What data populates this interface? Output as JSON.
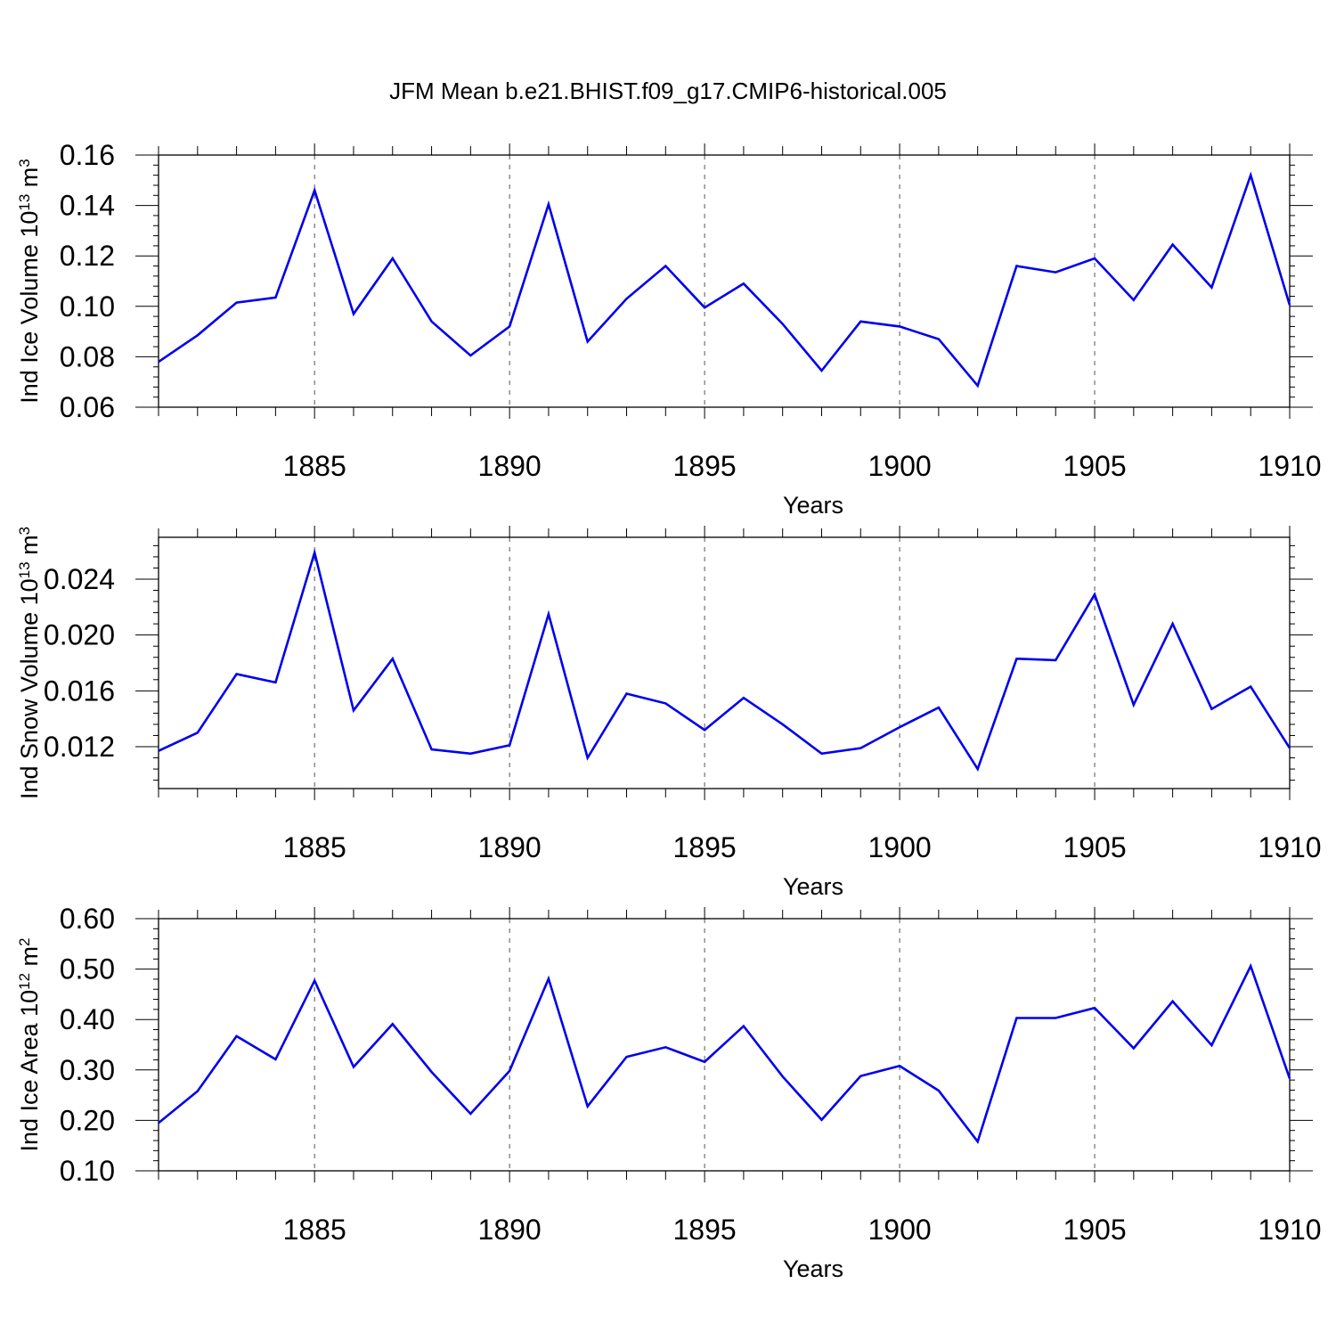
{
  "title": "JFM Mean b.e21.BHIST.f09_g17.CMIP6-historical.005",
  "colors": {
    "line": "#0000ee",
    "axis": "#000000",
    "grid": "#555555"
  },
  "chart_data": [
    {
      "type": "line",
      "xlabel": "Years",
      "ylabel": {
        "main": "Ind Ice Volume 10",
        "sup": "13",
        "unit": " m",
        "unit_sup": "3"
      },
      "xlim": [
        1881,
        1910
      ],
      "ylim": [
        0.06,
        0.16
      ],
      "x_ticks": [
        1885,
        1890,
        1895,
        1900,
        1905,
        1910
      ],
      "x_tick_labels": [
        "1885",
        "1890",
        "1895",
        "1900",
        "1905",
        "1910"
      ],
      "y_ticks": [
        0.06,
        0.08,
        0.1,
        0.12,
        0.14,
        0.16
      ],
      "y_tick_labels": [
        "0.06",
        "0.08",
        "0.10",
        "0.12",
        "0.14",
        "0.16"
      ],
      "grid": "vertical dashed at major x ticks",
      "x": [
        1881,
        1882,
        1883,
        1884,
        1885,
        1886,
        1887,
        1888,
        1889,
        1890,
        1891,
        1892,
        1893,
        1894,
        1895,
        1896,
        1897,
        1898,
        1899,
        1900,
        1901,
        1902,
        1903,
        1904,
        1905,
        1906,
        1907,
        1908,
        1909,
        1910
      ],
      "values": [
        0.078,
        0.0885,
        0.1015,
        0.1035,
        0.146,
        0.097,
        0.119,
        0.094,
        0.0805,
        0.092,
        0.1405,
        0.086,
        0.103,
        0.116,
        0.0995,
        0.109,
        0.093,
        0.0745,
        0.094,
        0.092,
        0.087,
        0.0685,
        0.116,
        0.1135,
        0.119,
        0.1025,
        0.1245,
        0.1075,
        0.152,
        0.1005
      ]
    },
    {
      "type": "line",
      "xlabel": "Years",
      "ylabel": {
        "main": "Ind Snow Volume 10",
        "sup": "13",
        "unit": " m",
        "unit_sup": "3"
      },
      "xlim": [
        1881,
        1910
      ],
      "ylim": [
        0.009,
        0.027
      ],
      "x_ticks": [
        1885,
        1890,
        1895,
        1900,
        1905,
        1910
      ],
      "x_tick_labels": [
        "1885",
        "1890",
        "1895",
        "1900",
        "1905",
        "1910"
      ],
      "y_ticks": [
        0.012,
        0.016,
        0.02,
        0.024
      ],
      "y_tick_labels": [
        "0.012",
        "0.016",
        "0.020",
        "0.024"
      ],
      "grid": "vertical dashed at major x ticks",
      "x": [
        1881,
        1882,
        1883,
        1884,
        1885,
        1886,
        1887,
        1888,
        1889,
        1890,
        1891,
        1892,
        1893,
        1894,
        1895,
        1896,
        1897,
        1898,
        1899,
        1900,
        1901,
        1902,
        1903,
        1904,
        1905,
        1906,
        1907,
        1908,
        1909,
        1910
      ],
      "values": [
        0.0117,
        0.013,
        0.0172,
        0.0166,
        0.0259,
        0.0146,
        0.0183,
        0.0118,
        0.0115,
        0.0121,
        0.0215,
        0.0112,
        0.0158,
        0.0151,
        0.0132,
        0.0155,
        0.0136,
        0.0115,
        0.0119,
        0.0134,
        0.0148,
        0.0104,
        0.0183,
        0.0182,
        0.0229,
        0.015,
        0.0208,
        0.0147,
        0.0163,
        0.0119
      ]
    },
    {
      "type": "line",
      "xlabel": "Years",
      "ylabel": {
        "main": "Ind Ice Area 10",
        "sup": "12",
        "unit": " m",
        "unit_sup": "2"
      },
      "xlim": [
        1881,
        1910
      ],
      "ylim": [
        0.1,
        0.6
      ],
      "x_ticks": [
        1885,
        1890,
        1895,
        1900,
        1905,
        1910
      ],
      "x_tick_labels": [
        "1885",
        "1890",
        "1895",
        "1900",
        "1905",
        "1910"
      ],
      "y_ticks": [
        0.1,
        0.2,
        0.3,
        0.4,
        0.5,
        0.6
      ],
      "y_tick_labels": [
        "0.10",
        "0.20",
        "0.30",
        "0.40",
        "0.50",
        "0.60"
      ],
      "grid": "vertical dashed at major x ticks",
      "x": [
        1881,
        1882,
        1883,
        1884,
        1885,
        1886,
        1887,
        1888,
        1889,
        1890,
        1891,
        1892,
        1893,
        1894,
        1895,
        1896,
        1897,
        1898,
        1899,
        1900,
        1901,
        1902,
        1903,
        1904,
        1905,
        1906,
        1907,
        1908,
        1909,
        1910
      ],
      "values": [
        0.195,
        0.258,
        0.367,
        0.321,
        0.477,
        0.306,
        0.391,
        0.296,
        0.213,
        0.298,
        0.481,
        0.228,
        0.326,
        0.345,
        0.316,
        0.387,
        0.287,
        0.201,
        0.288,
        0.308,
        0.259,
        0.158,
        0.403,
        0.403,
        0.423,
        0.343,
        0.436,
        0.349,
        0.506,
        0.283
      ]
    }
  ]
}
